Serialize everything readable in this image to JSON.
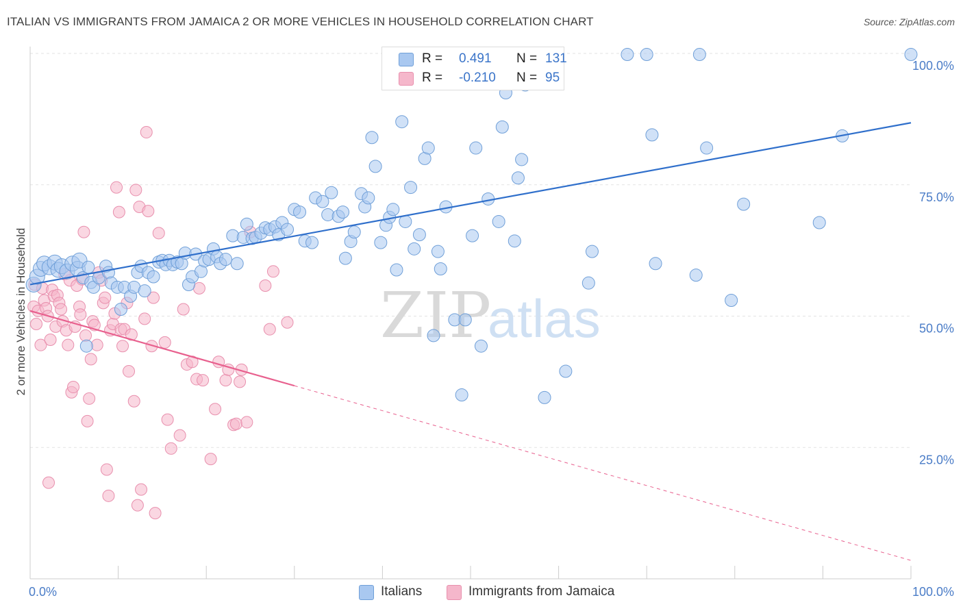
{
  "header": {
    "title": "ITALIAN VS IMMIGRANTS FROM JAMAICA 2 OR MORE VEHICLES IN HOUSEHOLD CORRELATION CHART",
    "source": "Source: ZipAtlas.com"
  },
  "watermark": {
    "zip": "ZIP",
    "atlas": "atlas"
  },
  "legend": {
    "rows": [
      {
        "r_label": "R =",
        "r_value": "0.491",
        "n_label": "N =",
        "n_value": "131",
        "color": "#a9c8f0"
      },
      {
        "r_label": "R =",
        "r_value": "-0.210",
        "n_label": "N =",
        "n_value": "95",
        "color": "#f5b7cb"
      }
    ]
  },
  "bottom_legend": {
    "italians": "Italians",
    "jamaica": "Immigrants from Jamaica"
  },
  "colors": {
    "italians_fill": "#a9c8f0",
    "italians_stroke": "#6f9fd8",
    "italians_line": "#2f6fcb",
    "jamaica_fill": "#f5b7cb",
    "jamaica_stroke": "#e88fad",
    "jamaica_line": "#e8608e",
    "grid": "#e3e3e3",
    "tick_text": "#4a7cc7"
  },
  "chart_data": {
    "type": "scatter",
    "title": "ITALIAN VS IMMIGRANTS FROM JAMAICA 2 OR MORE VEHICLES IN HOUSEHOLD CORRELATION CHART",
    "xlabel": "",
    "ylabel": "2 or more Vehicles in Household",
    "xlim": [
      0,
      100
    ],
    "ylim": [
      0,
      100
    ],
    "x_tick_labels": [
      "0.0%",
      "100.0%"
    ],
    "y_ticks": [
      25,
      50,
      75,
      100
    ],
    "y_tick_labels": [
      "25.0%",
      "50.0%",
      "75.0%",
      "100.0%"
    ],
    "grid": true,
    "legend_position": "top-center",
    "series": [
      {
        "name": "Italians",
        "r": 0.491,
        "n": 131,
        "trend": {
          "x": [
            0,
            100
          ],
          "y": [
            56.0,
            86.8
          ],
          "dashed_from": null
        },
        "points": [
          [
            0.4,
            56.0
          ],
          [
            0.8,
            57.5
          ],
          [
            1.2,
            59.0
          ],
          [
            1.6,
            60.0
          ],
          [
            2.2,
            59.3
          ],
          [
            2.8,
            60.2
          ],
          [
            3.2,
            58.8
          ],
          [
            3.6,
            59.5
          ],
          [
            4.2,
            58.5
          ],
          [
            4.8,
            60.0
          ],
          [
            5.4,
            59.0
          ],
          [
            5.6,
            60.6
          ],
          [
            6.0,
            57.3
          ],
          [
            6.4,
            44.3
          ],
          [
            6.6,
            59.3
          ],
          [
            6.9,
            56.4
          ],
          [
            7.2,
            55.5
          ],
          [
            7.8,
            57.3
          ],
          [
            8.6,
            59.5
          ],
          [
            8.9,
            58.3
          ],
          [
            9.2,
            56.3
          ],
          [
            9.9,
            55.5
          ],
          [
            10.3,
            51.3
          ],
          [
            10.7,
            55.5
          ],
          [
            11.4,
            53.8
          ],
          [
            11.8,
            55.5
          ],
          [
            12.2,
            58.3
          ],
          [
            12.6,
            59.5
          ],
          [
            13.0,
            54.8
          ],
          [
            13.4,
            58.3
          ],
          [
            14.0,
            57.5
          ],
          [
            14.6,
            60.3
          ],
          [
            15.0,
            60.6
          ],
          [
            15.4,
            59.8
          ],
          [
            15.8,
            60.6
          ],
          [
            16.2,
            59.8
          ],
          [
            16.7,
            60.3
          ],
          [
            17.2,
            60.0
          ],
          [
            17.6,
            62.0
          ],
          [
            18.0,
            56.0
          ],
          [
            18.4,
            57.5
          ],
          [
            18.8,
            61.8
          ],
          [
            19.4,
            58.5
          ],
          [
            19.8,
            60.5
          ],
          [
            20.3,
            60.8
          ],
          [
            20.8,
            62.8
          ],
          [
            21.2,
            61.3
          ],
          [
            21.6,
            60.0
          ],
          [
            22.2,
            60.8
          ],
          [
            23.0,
            65.3
          ],
          [
            23.5,
            60.0
          ],
          [
            24.2,
            65.0
          ],
          [
            24.6,
            67.5
          ],
          [
            25.2,
            64.8
          ],
          [
            25.6,
            65.0
          ],
          [
            26.2,
            65.8
          ],
          [
            26.7,
            66.8
          ],
          [
            27.2,
            66.5
          ],
          [
            27.8,
            67.0
          ],
          [
            28.2,
            65.5
          ],
          [
            28.6,
            67.8
          ],
          [
            29.2,
            66.5
          ],
          [
            30.0,
            70.3
          ],
          [
            30.6,
            69.8
          ],
          [
            31.2,
            64.3
          ],
          [
            32.0,
            64.0
          ],
          [
            32.4,
            72.5
          ],
          [
            33.2,
            71.8
          ],
          [
            33.8,
            69.3
          ],
          [
            34.2,
            73.5
          ],
          [
            35.0,
            69.0
          ],
          [
            35.5,
            69.8
          ],
          [
            35.8,
            61.0
          ],
          [
            36.4,
            64.2
          ],
          [
            36.8,
            66.0
          ],
          [
            37.6,
            73.3
          ],
          [
            38.0,
            70.8
          ],
          [
            38.4,
            72.5
          ],
          [
            38.8,
            84.0
          ],
          [
            39.2,
            78.5
          ],
          [
            39.8,
            64.0
          ],
          [
            40.4,
            67.3
          ],
          [
            40.8,
            68.8
          ],
          [
            41.2,
            70.3
          ],
          [
            41.6,
            58.8
          ],
          [
            42.2,
            87.0
          ],
          [
            42.6,
            68.0
          ],
          [
            43.2,
            74.5
          ],
          [
            43.6,
            62.8
          ],
          [
            44.2,
            65.5
          ],
          [
            44.8,
            80.0
          ],
          [
            45.2,
            82.0
          ],
          [
            45.8,
            46.3
          ],
          [
            46.3,
            62.3
          ],
          [
            46.6,
            59.0
          ],
          [
            47.2,
            70.8
          ],
          [
            48.2,
            49.3
          ],
          [
            49.0,
            35.0
          ],
          [
            49.4,
            49.3
          ],
          [
            50.2,
            65.3
          ],
          [
            50.6,
            82.0
          ],
          [
            51.2,
            44.3
          ],
          [
            52.0,
            72.3
          ],
          [
            53.2,
            68.0
          ],
          [
            53.6,
            86.0
          ],
          [
            54.0,
            92.5
          ],
          [
            55.0,
            64.3
          ],
          [
            55.4,
            76.3
          ],
          [
            55.8,
            79.8
          ],
          [
            56.2,
            94.0
          ],
          [
            57.2,
            100.0
          ],
          [
            58.4,
            34.5
          ],
          [
            59.2,
            100.0
          ],
          [
            60.8,
            39.5
          ],
          [
            63.4,
            56.3
          ],
          [
            63.8,
            62.3
          ],
          [
            67.8,
            99.8
          ],
          [
            70.0,
            99.8
          ],
          [
            70.6,
            84.5
          ],
          [
            71.0,
            60.0
          ],
          [
            75.6,
            57.8
          ],
          [
            76.0,
            99.8
          ],
          [
            76.8,
            82.0
          ],
          [
            79.6,
            53.0
          ],
          [
            81.0,
            71.3
          ],
          [
            89.6,
            67.8
          ],
          [
            92.2,
            84.3
          ],
          [
            100.0,
            99.8
          ]
        ]
      },
      {
        "name": "Immigrants from Jamaica",
        "r": -0.21,
        "n": 95,
        "trend": {
          "x": [
            0,
            100
          ],
          "y": [
            51.0,
            3.5
          ],
          "dashed_from": 30
        },
        "points": [
          [
            0.4,
            51.8
          ],
          [
            0.5,
            56.0
          ],
          [
            0.7,
            48.5
          ],
          [
            0.9,
            51.0
          ],
          [
            1.2,
            44.5
          ],
          [
            1.4,
            55.3
          ],
          [
            1.6,
            53.0
          ],
          [
            1.8,
            51.5
          ],
          [
            2.0,
            50.0
          ],
          [
            2.1,
            18.3
          ],
          [
            2.3,
            45.5
          ],
          [
            2.5,
            55.0
          ],
          [
            2.7,
            53.8
          ],
          [
            2.9,
            48.0
          ],
          [
            3.1,
            54.0
          ],
          [
            3.3,
            52.5
          ],
          [
            3.5,
            51.3
          ],
          [
            3.7,
            49.0
          ],
          [
            3.9,
            58.0
          ],
          [
            4.1,
            47.3
          ],
          [
            4.3,
            44.5
          ],
          [
            4.5,
            56.8
          ],
          [
            4.7,
            35.5
          ],
          [
            4.9,
            36.5
          ],
          [
            5.1,
            48.0
          ],
          [
            5.3,
            55.8
          ],
          [
            5.6,
            51.8
          ],
          [
            5.7,
            50.3
          ],
          [
            5.9,
            57.0
          ],
          [
            6.1,
            66.0
          ],
          [
            6.3,
            46.3
          ],
          [
            6.5,
            30.0
          ],
          [
            6.7,
            34.3
          ],
          [
            6.9,
            41.8
          ],
          [
            7.1,
            49.0
          ],
          [
            7.3,
            48.3
          ],
          [
            7.6,
            44.5
          ],
          [
            7.8,
            58.3
          ],
          [
            8.1,
            56.8
          ],
          [
            8.3,
            52.5
          ],
          [
            8.5,
            53.5
          ],
          [
            8.7,
            20.8
          ],
          [
            8.9,
            15.8
          ],
          [
            9.1,
            47.3
          ],
          [
            9.4,
            48.5
          ],
          [
            9.6,
            50.5
          ],
          [
            9.8,
            74.5
          ],
          [
            10.1,
            69.8
          ],
          [
            10.3,
            47.5
          ],
          [
            10.5,
            44.3
          ],
          [
            10.7,
            47.5
          ],
          [
            11.0,
            52.5
          ],
          [
            11.2,
            39.5
          ],
          [
            11.5,
            46.5
          ],
          [
            11.8,
            33.8
          ],
          [
            12.0,
            74.0
          ],
          [
            12.2,
            14.0
          ],
          [
            12.4,
            70.8
          ],
          [
            12.6,
            17.0
          ],
          [
            13.0,
            49.5
          ],
          [
            13.2,
            85.0
          ],
          [
            13.4,
            70.0
          ],
          [
            13.8,
            44.3
          ],
          [
            14.0,
            53.5
          ],
          [
            14.2,
            12.5
          ],
          [
            14.6,
            65.8
          ],
          [
            15.3,
            45.0
          ],
          [
            15.6,
            30.3
          ],
          [
            16.0,
            24.8
          ],
          [
            17.0,
            27.3
          ],
          [
            17.4,
            51.3
          ],
          [
            17.8,
            40.8
          ],
          [
            18.4,
            41.3
          ],
          [
            18.9,
            38.0
          ],
          [
            19.2,
            55.3
          ],
          [
            19.6,
            37.8
          ],
          [
            20.5,
            22.8
          ],
          [
            21.0,
            32.3
          ],
          [
            21.4,
            41.3
          ],
          [
            22.2,
            37.8
          ],
          [
            22.5,
            39.8
          ],
          [
            23.1,
            29.3
          ],
          [
            23.4,
            29.5
          ],
          [
            23.8,
            37.5
          ],
          [
            24.0,
            39.8
          ],
          [
            24.6,
            29.8
          ],
          [
            25.0,
            66.0
          ],
          [
            26.7,
            55.8
          ],
          [
            27.2,
            47.5
          ],
          [
            27.6,
            58.5
          ],
          [
            29.2,
            48.8
          ]
        ]
      }
    ]
  }
}
